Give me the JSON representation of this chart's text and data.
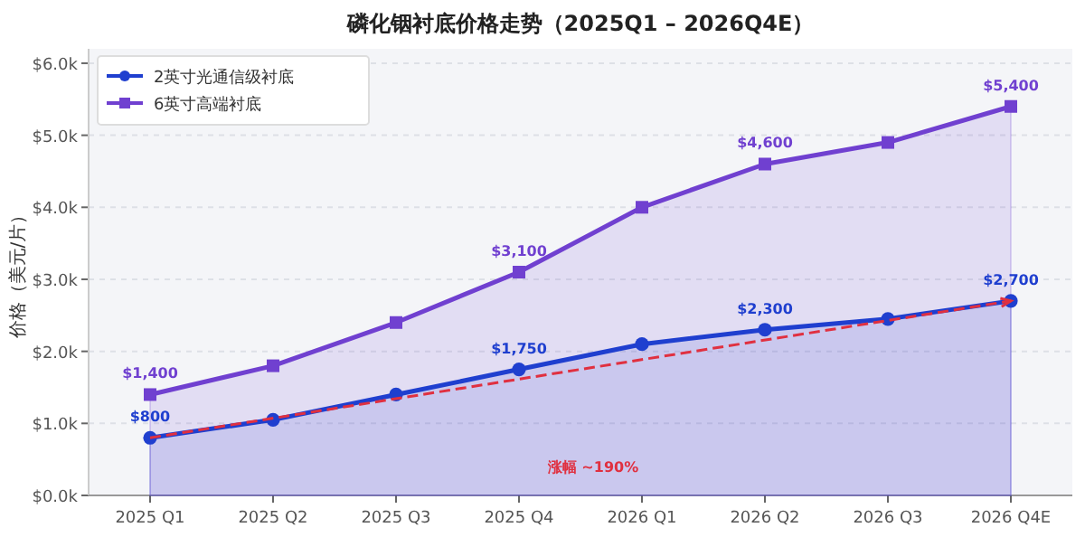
{
  "chart_data": {
    "type": "area",
    "title": "磷化铟衬底价格走势（2025Q1 – 2026Q4E）",
    "ylabel": "价格（美元/片）",
    "categories": [
      "2025 Q1",
      "2025 Q2",
      "2025 Q3",
      "2025 Q4",
      "2026 Q1",
      "2026 Q2",
      "2026 Q3",
      "2026 Q4E"
    ],
    "series": [
      {
        "name": "2英寸光通信级衬底",
        "color": "#1f3fcf",
        "marker": "circle",
        "values": [
          800,
          1050,
          1400,
          1750,
          2100,
          2300,
          2450,
          2700
        ],
        "value_labels": [
          "$800",
          null,
          null,
          "$1,750",
          null,
          "$2,300",
          null,
          "$2,700"
        ]
      },
      {
        "name": "6英寸高端衬底",
        "color": "#7040d0",
        "marker": "square",
        "values": [
          1400,
          1800,
          2400,
          3100,
          4000,
          4600,
          4900,
          5400
        ],
        "value_labels": [
          "$1,400",
          null,
          null,
          "$3,100",
          null,
          "$4,600",
          null,
          "$5,400"
        ]
      },
      {
        "type": "line",
        "color": "#e03040",
        "line_style": "dashed",
        "x": [
          "2025 Q1",
          "2026 Q4E"
        ],
        "values": [
          800,
          2700
        ]
      }
    ],
    "annotations": [
      "涨幅 ~190%"
    ],
    "ylim": [
      0,
      6200
    ],
    "yticks": [
      {
        "value": 0,
        "label": "$0.0k"
      },
      {
        "value": 1000,
        "label": "$1.0k"
      },
      {
        "value": 2000,
        "label": "$2.0k"
      },
      {
        "value": 3000,
        "label": "$3.0k"
      },
      {
        "value": 4000,
        "label": "$4.0k"
      },
      {
        "value": 5000,
        "label": "$5.0k"
      },
      {
        "value": 6000,
        "label": "$6.0k"
      }
    ],
    "grid": "y",
    "legend": "top left"
  }
}
